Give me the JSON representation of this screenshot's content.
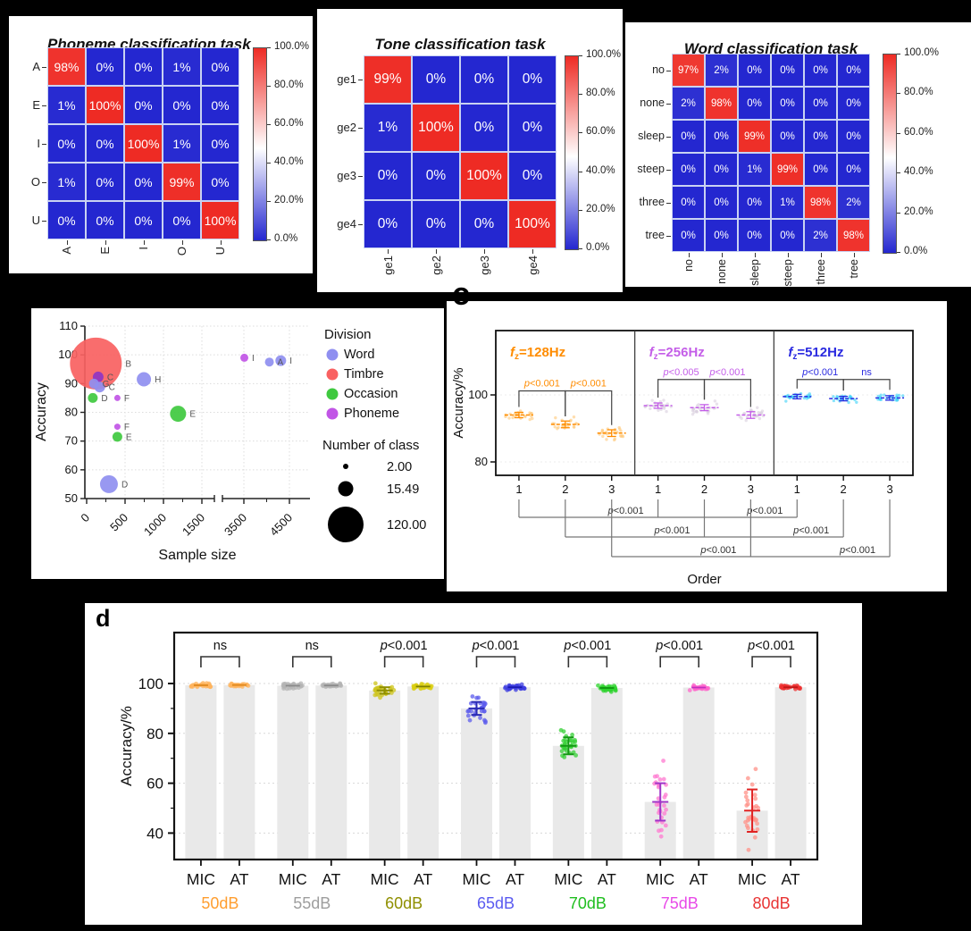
{
  "panel_labels": {
    "c": "c",
    "d": "d"
  },
  "chart_data": [
    {
      "id": "phoneme_confusion",
      "type": "heatmap",
      "title": "Phoneme classification task",
      "x_labels": [
        "A",
        "E",
        "I",
        "O",
        "U"
      ],
      "y_labels": [
        "A",
        "E",
        "I",
        "O",
        "U"
      ],
      "values_pct": [
        [
          98,
          0,
          0,
          1,
          0
        ],
        [
          1,
          100,
          0,
          0,
          0
        ],
        [
          0,
          0,
          100,
          1,
          0
        ],
        [
          1,
          0,
          0,
          99,
          0
        ],
        [
          0,
          0,
          0,
          0,
          100
        ]
      ],
      "colorbar_ticks": [
        "100.0%",
        "80.0%",
        "60.0%",
        "40.0%",
        "20.0%",
        "0.0%"
      ],
      "color_low": "#2427D0",
      "color_mid": "#FFFFFF",
      "color_high": "#EE2B24"
    },
    {
      "id": "tone_confusion",
      "type": "heatmap",
      "title": "Tone classification task",
      "x_labels": [
        "ge1",
        "ge2",
        "ge3",
        "ge4"
      ],
      "y_labels": [
        "ge1",
        "ge2",
        "ge3",
        "ge4"
      ],
      "values_pct": [
        [
          99,
          0,
          0,
          0
        ],
        [
          1,
          100,
          0,
          0
        ],
        [
          0,
          0,
          100,
          0
        ],
        [
          0,
          0,
          0,
          100
        ]
      ],
      "colorbar_ticks": [
        "100.0%",
        "80.0%",
        "60.0%",
        "40.0%",
        "20.0%",
        "0.0%"
      ],
      "color_low": "#2427D0",
      "color_mid": "#FFFFFF",
      "color_high": "#EE2B24"
    },
    {
      "id": "word_confusion",
      "type": "heatmap",
      "title": "Word classification task",
      "x_labels": [
        "no",
        "none",
        "sleep",
        "steep",
        "three",
        "tree"
      ],
      "y_labels": [
        "no",
        "none",
        "sleep",
        "steep",
        "three",
        "tree"
      ],
      "values_pct": [
        [
          97,
          2,
          0,
          0,
          0,
          0
        ],
        [
          2,
          98,
          0,
          0,
          0,
          0
        ],
        [
          0,
          0,
          99,
          0,
          0,
          0
        ],
        [
          0,
          0,
          1,
          99,
          0,
          0
        ],
        [
          0,
          0,
          0,
          1,
          98,
          2
        ],
        [
          0,
          0,
          0,
          0,
          2,
          98
        ]
      ],
      "colorbar_ticks": [
        "100.0%",
        "80.0%",
        "60.0%",
        "40.0%",
        "20.0%",
        "0.0%"
      ],
      "color_low": "#2427D0",
      "color_mid": "#FFFFFF",
      "color_high": "#EE2B24"
    },
    {
      "id": "accuracy_vs_sample_size",
      "type": "scatter",
      "xlabel": "Sample size",
      "ylabel": "Accuracy",
      "ylim": [
        50,
        110
      ],
      "y_ticks": [
        "50",
        "60",
        "70",
        "80",
        "90",
        "100",
        "110"
      ],
      "x_ticks": [
        "0",
        "500",
        "1000",
        "1500",
        "3500",
        "4500"
      ],
      "x_tick_values": [
        0,
        500,
        1000,
        1500,
        3500,
        4500
      ],
      "axis_break_between": [
        1500,
        3500
      ],
      "legend": {
        "title": "Division",
        "entries": [
          {
            "label": "Word",
            "color": "#8F8FF0"
          },
          {
            "label": "Timbre",
            "color": "#F96161"
          },
          {
            "label": "Occasion",
            "color": "#3FC93F"
          },
          {
            "label": "Phoneme",
            "color": "#C155E6"
          }
        ],
        "size_title": "Number of class",
        "size_entries": [
          {
            "label": "2.00",
            "r": 3
          },
          {
            "label": "15.49",
            "r": 8.5
          },
          {
            "label": "120.00",
            "r": 20
          }
        ]
      },
      "points": [
        {
          "label": "B",
          "division": "Timbre",
          "x": 120,
          "y": 97,
          "r": 29
        },
        {
          "label": "C",
          "division": "Phoneme",
          "x": 150,
          "y": 92.3,
          "r": 6,
          "color": "#8F35C4"
        },
        {
          "label": "G",
          "division": "Word",
          "x": 95,
          "y": 90,
          "r": 5.5
        },
        {
          "label": "C",
          "division": "Word",
          "x": 170,
          "y": 88.8,
          "r": 6
        },
        {
          "label": "D",
          "division": "Occasion",
          "x": 80,
          "y": 85,
          "r": 5.5
        },
        {
          "label": "F",
          "division": "Phoneme",
          "x": 400,
          "y": 85,
          "r": 3.5
        },
        {
          "label": "H",
          "division": "Word",
          "x": 745,
          "y": 91.5,
          "r": 8
        },
        {
          "label": "E",
          "division": "Occasion",
          "x": 1190,
          "y": 79.5,
          "r": 9
        },
        {
          "label": "F",
          "division": "Phoneme",
          "x": 400,
          "y": 75,
          "r": 3.5
        },
        {
          "label": "E",
          "division": "Occasion",
          "x": 400,
          "y": 71.5,
          "r": 5.5
        },
        {
          "label": "D",
          "division": "Word",
          "x": 290,
          "y": 55,
          "r": 10
        },
        {
          "label": "I",
          "division": "Phoneme",
          "x": 3510,
          "y": 99,
          "r": 4.5
        },
        {
          "label": "A",
          "division": "Word",
          "x": 4060,
          "y": 97.5,
          "r": 5
        },
        {
          "label": "I",
          "division": "Word",
          "x": 4310,
          "y": 98,
          "r": 6
        }
      ]
    },
    {
      "id": "order_accuracy",
      "type": "strip",
      "ylabel": "Accuracy/%",
      "xlabel": "Order",
      "y_ticks": [
        "100",
        "80"
      ],
      "y_tick_values": [
        100,
        80
      ],
      "x_ticks": [
        "1",
        "2",
        "3"
      ],
      "subpanels": [
        {
          "var": "f",
          "sub": "z",
          "freq_label": "=128Hz",
          "color": "#FF8C00",
          "dot_color": "#FFC878",
          "means": [
            94,
            91.2,
            88.6
          ],
          "sd": [
            0.8,
            1.0,
            1.0
          ],
          "comparisons": [
            {
              "a": 1,
              "b": 2,
              "label": "p<0.001"
            },
            {
              "a": 2,
              "b": 3,
              "label": "p<0.001"
            }
          ]
        },
        {
          "var": "f",
          "sub": "z",
          "freq_label": "=256Hz",
          "color": "#C45EE8",
          "dot_color": "#D8CEDE",
          "means": [
            96.8,
            96.2,
            94
          ],
          "sd": [
            0.8,
            0.9,
            1.0
          ],
          "comparisons": [
            {
              "a": 1,
              "b": 2,
              "label": "p<0.005"
            },
            {
              "a": 2,
              "b": 3,
              "label": "p<0.001"
            }
          ]
        },
        {
          "var": "f",
          "sub": "z",
          "freq_label": "=512Hz",
          "color": "#2A2AE0",
          "dot_color": "#3CD2F8",
          "means": [
            99.5,
            98.9,
            99.1
          ],
          "sd": [
            0.35,
            0.5,
            0.5
          ],
          "comparisons": [
            {
              "a": 1,
              "b": 2,
              "label": "p<0.001"
            },
            {
              "a": 2,
              "b": 3,
              "label": "ns"
            }
          ]
        }
      ],
      "cross_comparisons": [
        {
          "order": 1,
          "labels": [
            "p<0.001",
            "p<0.001"
          ]
        },
        {
          "order": 2,
          "labels": [
            "p<0.001",
            "p<0.001"
          ]
        },
        {
          "order": 3,
          "labels": [
            "p<0.001",
            "p<0.001"
          ]
        }
      ]
    },
    {
      "id": "mic_vs_at",
      "type": "bar-strip",
      "ylabel": "Accuracy/%",
      "y_ticks": [
        "100",
        "80",
        "60",
        "40"
      ],
      "y_tick_values": [
        100,
        80,
        60,
        40
      ],
      "pair_labels": [
        "MIC",
        "AT"
      ],
      "groups": [
        {
          "label": "50dB",
          "color": "#FF9E30",
          "sig": "ns",
          "mic": {
            "mean": 99.3,
            "sd": 0.4,
            "dot": "#FFB45E",
            "err": null,
            "mline": "#E08A20"
          },
          "at": {
            "mean": 99.4,
            "sd": 0.3,
            "dot": "#FFB45E",
            "mline": "#E08A20"
          }
        },
        {
          "label": "55dB",
          "color": "#9E9E9E",
          "sig": "ns",
          "mic": {
            "mean": 99.1,
            "sd": 0.7,
            "dot": "#B4B4B4",
            "err": null,
            "mline": "#8A8A8A"
          },
          "at": {
            "mean": 99.2,
            "sd": 0.4,
            "dot": "#B4B4B4",
            "mline": "#8A8A8A"
          }
        },
        {
          "label": "60dB",
          "color": "#8F8F00",
          "sig": "p<0.001",
          "mic": {
            "mean": 97.2,
            "sd": 1.3,
            "dot": "#CDC41C",
            "err": "#8F8F00",
            "mline": "#8F8F00"
          },
          "at": {
            "mean": 98.8,
            "sd": 0.5,
            "dot": "#D9CE12",
            "mline": "#7F7F00"
          }
        },
        {
          "label": "65dB",
          "color": "#5A5AF0",
          "sig": "p<0.001",
          "mic": {
            "mean": 90,
            "sd": 2.6,
            "dot": "#5C5CEC",
            "err": "#2A2AB4",
            "mline": "#2A2AB4"
          },
          "at": {
            "mean": 98.5,
            "sd": 0.6,
            "dot": "#3C3CE0",
            "mline": "#1A1AB0"
          }
        },
        {
          "label": "70dB",
          "color": "#1FBE1F",
          "sig": "p<0.001",
          "mic": {
            "mean": 75,
            "sd": 3.4,
            "dot": "#35D035",
            "err": "#129812",
            "mline": "#129812"
          },
          "at": {
            "mean": 98.2,
            "sd": 0.7,
            "dot": "#2ED32E",
            "mline": "#0F930F"
          }
        },
        {
          "label": "75dB",
          "color": "#E84AE8",
          "sig": "p<0.001",
          "mic": {
            "mean": 52.5,
            "sd": 7.5,
            "dot": "#FF7AD0",
            "err": "#A035C8",
            "mline": "#A035C8"
          },
          "at": {
            "mean": 98.4,
            "sd": 0.5,
            "dot": "#FF66CB",
            "mline": "#C030C0"
          }
        },
        {
          "label": "80dB",
          "color": "#E83434",
          "sig": "p<0.001",
          "mic": {
            "mean": 49,
            "sd": 8.5,
            "dot": "#FF9188",
            "err": "#E02222",
            "mline": "#E02222"
          },
          "at": {
            "mean": 98.5,
            "sd": 0.5,
            "dot": "#EE3030",
            "mline": "#C01818"
          }
        }
      ]
    }
  ]
}
